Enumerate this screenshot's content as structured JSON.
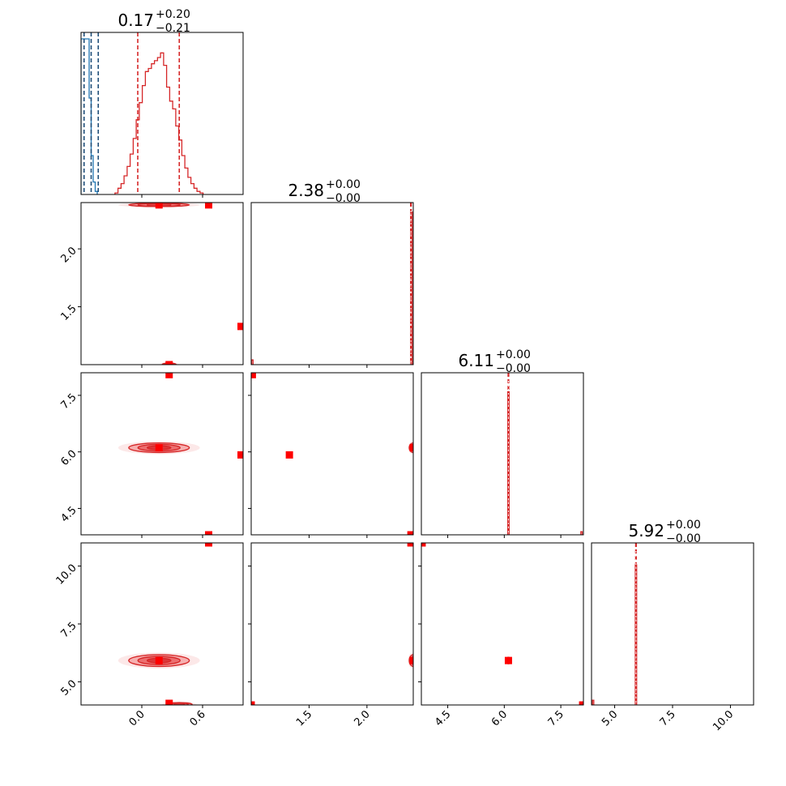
{
  "chart_data": {
    "type": "corner",
    "colors": {
      "red": "#d62728",
      "red_fill": "#f08080",
      "red_marker": "#ff0000",
      "blue": "#1f77b4",
      "blue_dark": "#1f4e79"
    },
    "params": [
      {
        "median": 0.17,
        "lo": -0.04,
        "hi": 0.37,
        "range": [
          -0.6,
          1.0
        ],
        "title": {
          "main": "0.17",
          "plus": "+0.20",
          "minus": "−0.21"
        },
        "ticks": [
          {
            "v": 0.0,
            "label": "0.0"
          },
          {
            "v": 0.6,
            "label": "0.6"
          }
        ]
      },
      {
        "median": 2.38,
        "lo": 2.375,
        "hi": 2.385,
        "range": [
          1.0,
          2.4
        ],
        "title": {
          "main": "2.38",
          "plus": "+0.00",
          "minus": "−0.00"
        },
        "ticks": [
          {
            "v": 1.5,
            "label": "1.5"
          },
          {
            "v": 2.0,
            "label": "2.0"
          }
        ]
      },
      {
        "median": 6.11,
        "lo": 6.1,
        "hi": 6.12,
        "range": [
          3.8,
          8.1
        ],
        "title": {
          "main": "6.11",
          "plus": "+0.00",
          "minus": "−0.00"
        },
        "ticks": [
          {
            "v": 4.5,
            "label": "4.5"
          },
          {
            "v": 6.0,
            "label": "6.0"
          },
          {
            "v": 7.5,
            "label": "7.5"
          }
        ]
      },
      {
        "median": 5.92,
        "lo": 5.91,
        "hi": 5.93,
        "range": [
          4.0,
          11.0
        ],
        "title": {
          "main": "5.92",
          "plus": "+0.00",
          "minus": "−0.00"
        },
        "ticks": [
          {
            "v": 5.0,
            "label": "5.0"
          },
          {
            "v": 7.5,
            "label": "7.5"
          },
          {
            "v": 10.0,
            "label": "10.0"
          }
        ]
      }
    ],
    "histograms": [
      {
        "param": 0,
        "color": "red",
        "bins": [
          [
            -0.25,
            0.01
          ],
          [
            -0.22,
            0.04
          ],
          [
            -0.19,
            0.07
          ],
          [
            -0.16,
            0.12
          ],
          [
            -0.13,
            0.18
          ],
          [
            -0.1,
            0.26
          ],
          [
            -0.07,
            0.36
          ],
          [
            -0.04,
            0.48
          ],
          [
            -0.01,
            0.59
          ],
          [
            0.02,
            0.7
          ],
          [
            0.05,
            0.79
          ],
          [
            0.08,
            0.81
          ],
          [
            0.11,
            0.84
          ],
          [
            0.14,
            0.86
          ],
          [
            0.17,
            0.88
          ],
          [
            0.2,
            0.91
          ],
          [
            0.23,
            0.83
          ],
          [
            0.26,
            0.69
          ],
          [
            0.29,
            0.6
          ],
          [
            0.32,
            0.55
          ],
          [
            0.35,
            0.44
          ],
          [
            0.38,
            0.35
          ],
          [
            0.41,
            0.25
          ],
          [
            0.44,
            0.17
          ],
          [
            0.47,
            0.11
          ],
          [
            0.5,
            0.07
          ],
          [
            0.53,
            0.04
          ],
          [
            0.56,
            0.02
          ],
          [
            0.59,
            0.01
          ]
        ]
      },
      {
        "param": 0,
        "color": "blue",
        "bins": [
          [
            -0.59,
            1.0
          ],
          [
            -0.57,
            1.0
          ],
          [
            -0.55,
            1.0
          ],
          [
            -0.53,
            1.0
          ],
          [
            -0.51,
            0.62
          ],
          [
            -0.49,
            0.25
          ],
          [
            -0.47,
            0.08
          ],
          [
            -0.45,
            0.02
          ]
        ]
      },
      {
        "param": 1,
        "color": "red",
        "bins": [
          [
            1.01,
            0.03
          ],
          [
            2.385,
            0.98
          ]
        ]
      },
      {
        "param": 2,
        "color": "red",
        "bins": [
          [
            6.11,
            0.92
          ],
          [
            8.05,
            0.02
          ]
        ]
      },
      {
        "param": 3,
        "color": "red",
        "bins": [
          [
            4.07,
            0.03
          ],
          [
            5.92,
            0.9
          ]
        ]
      }
    ],
    "blue_quantiles": [
      {
        "param": 0,
        "values": [
          -0.57,
          -0.5,
          -0.43
        ]
      }
    ],
    "contour_sets": [
      {
        "x": 0,
        "y": 1,
        "cx": 0.17,
        "cy": 2.38,
        "sx": 0.26,
        "sy": 0.011
      },
      {
        "x": 0,
        "y": 1,
        "cx": 0.27,
        "cy": 1.0,
        "sx": 0.06,
        "sy": 0.008
      },
      {
        "x": 0,
        "y": 2,
        "cx": 0.17,
        "cy": 6.11,
        "sx": 0.26,
        "sy": 0.11
      },
      {
        "x": 0,
        "y": 3,
        "cx": 0.17,
        "cy": 5.92,
        "sx": 0.26,
        "sy": 0.22
      },
      {
        "x": 0,
        "y": 3,
        "cx": 0.37,
        "cy": 4.02,
        "sx": 0.11,
        "sy": 0.07
      },
      {
        "x": 1,
        "y": 2,
        "cx": 2.4,
        "cy": 6.11,
        "sx": 0.03,
        "sy": 0.11
      },
      {
        "x": 1,
        "y": 3,
        "cx": 2.4,
        "cy": 5.92,
        "sx": 0.03,
        "sy": 0.22
      },
      {
        "x": 2,
        "y": 3,
        "cx": 6.11,
        "cy": 5.92,
        "sx": 0.05,
        "sy": 0.12
      }
    ],
    "markers": [
      {
        "x": 0,
        "y": 1,
        "pts": [
          [
            0.17,
            2.38
          ],
          [
            0.66,
            2.38
          ],
          [
            0.98,
            1.33
          ],
          [
            0.27,
            1.0
          ]
        ]
      },
      {
        "x": 0,
        "y": 2,
        "pts": [
          [
            0.17,
            6.11
          ],
          [
            0.27,
            8.05
          ],
          [
            0.98,
            5.92
          ],
          [
            0.66,
            3.8
          ]
        ]
      },
      {
        "x": 0,
        "y": 3,
        "pts": [
          [
            0.17,
            5.92
          ],
          [
            0.66,
            11.0
          ],
          [
            0.27,
            4.07
          ]
        ]
      },
      {
        "x": 1,
        "y": 2,
        "pts": [
          [
            1.01,
            8.05
          ],
          [
            1.33,
            5.92
          ],
          [
            2.4,
            6.11
          ],
          [
            2.38,
            3.8
          ]
        ]
      },
      {
        "x": 1,
        "y": 3,
        "pts": [
          [
            2.38,
            11.0
          ],
          [
            2.4,
            5.92
          ],
          [
            1.0,
            4.0
          ]
        ]
      },
      {
        "x": 2,
        "y": 3,
        "pts": [
          [
            6.11,
            5.92
          ],
          [
            3.82,
            11.0
          ],
          [
            8.08,
            4.0
          ]
        ]
      }
    ]
  }
}
